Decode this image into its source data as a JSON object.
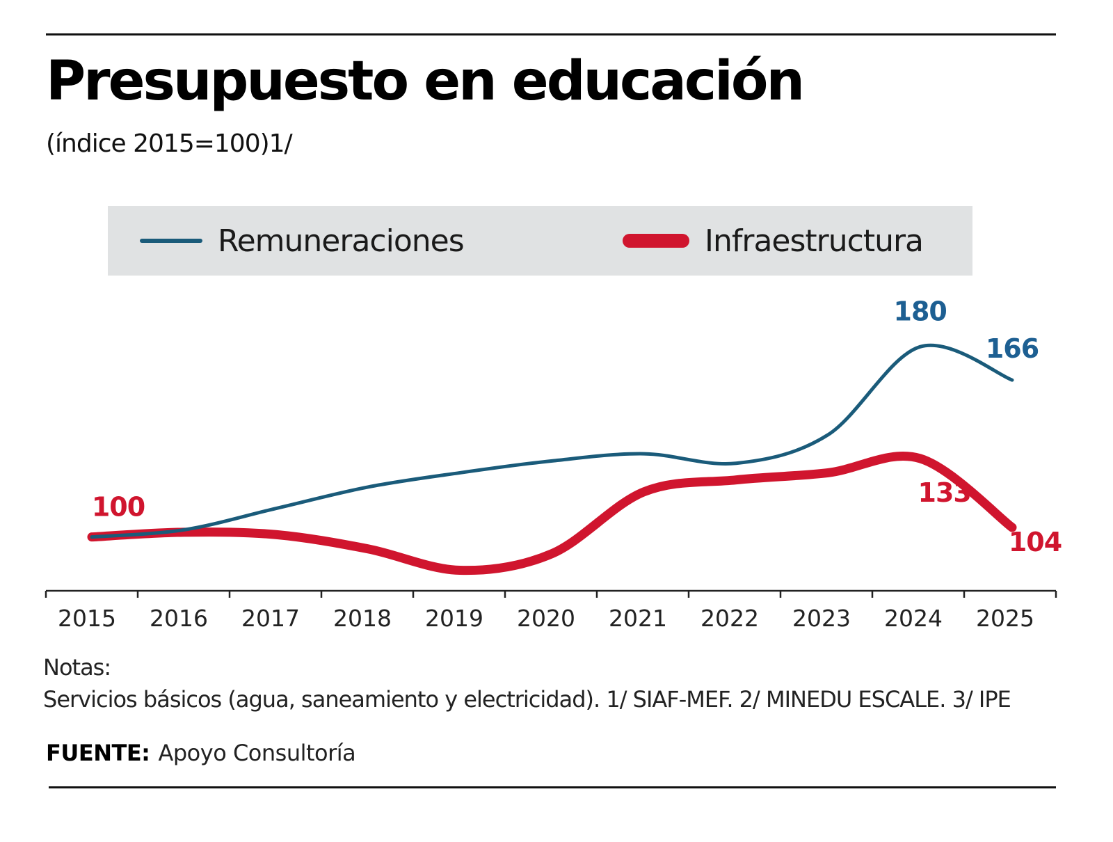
{
  "title": "Presupuesto en educación",
  "subtitle": "(índice 2015=100)1/",
  "colors": {
    "remuneraciones": "#1a5b7a",
    "infraestructura": "#d0152e",
    "label_remuneraciones": "#1d5f92",
    "axis": "#222222",
    "legend_bg": "#e0e2e3"
  },
  "chart_data": {
    "type": "line",
    "title": "Presupuesto en educación",
    "subtitle": "(índice 2015=100)1/",
    "legend": "top",
    "grid": false,
    "x": [
      "2015",
      "2016",
      "2017",
      "2018",
      "2019",
      "2020",
      "2021",
      "2022",
      "2023",
      "2024",
      "2025"
    ],
    "ylim": [
      80,
      200
    ],
    "series": [
      {
        "name": "Remuneraciones",
        "values": [
          100,
          103,
          112,
          121,
          127,
          132,
          135,
          131,
          143,
          180,
          166
        ],
        "labels": [
          {
            "index": 9,
            "text": "180"
          },
          {
            "index": 10,
            "text": "166"
          }
        ]
      },
      {
        "name": "Infraestructura",
        "values": [
          100,
          102,
          101,
          95,
          86,
          93,
          119,
          124,
          127,
          133,
          104
        ],
        "labels": [
          {
            "index": 0,
            "text": "100"
          },
          {
            "index": 9,
            "text": "133"
          },
          {
            "index": 10,
            "text": "104"
          }
        ]
      }
    ]
  },
  "notes": {
    "heading": "Notas:",
    "text": "Servicios básicos (agua, saneamiento y electricidad). 1/ SIAF-MEF. 2/ MINEDU ESCALE. 3/ IPE"
  },
  "source": {
    "label": "FUENTE:",
    "text": "Apoyo Consultoría"
  }
}
